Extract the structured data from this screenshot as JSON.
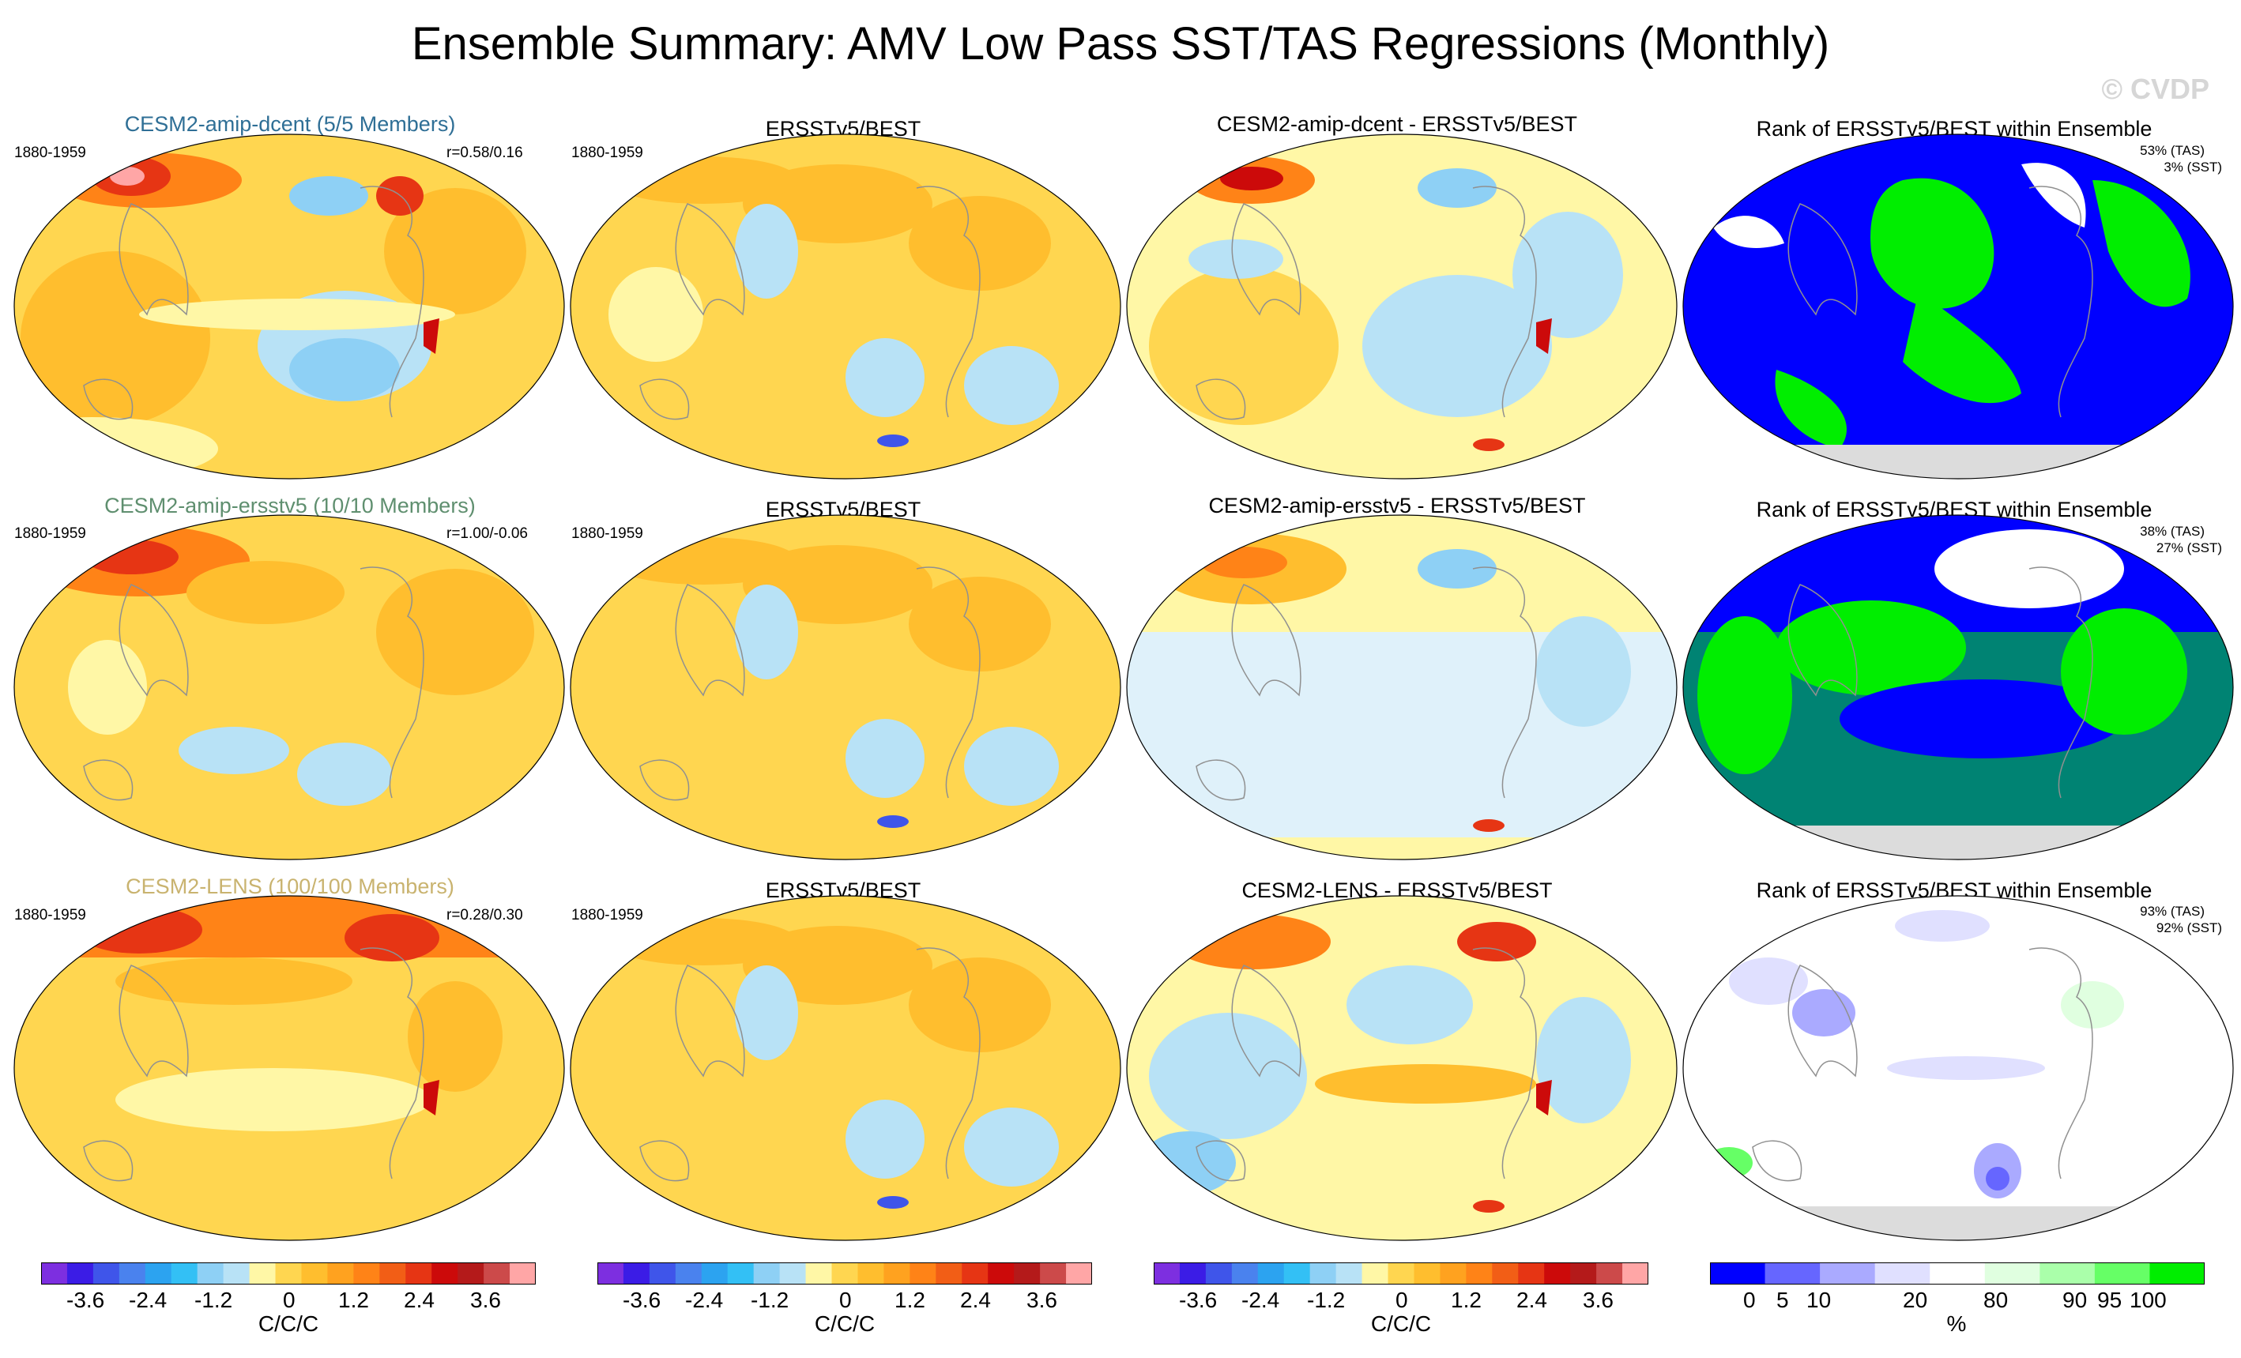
{
  "title": "Ensemble Summary: AMV Low Pass SST/TAS Regressions (Monthly)",
  "watermark": "© CVDP",
  "colors": {
    "model_title_row1": "#2f6f96",
    "model_title_row2": "#5f8f6f",
    "model_title_row3": "#c9b36f",
    "land_gray": "#dcdcdc",
    "coast": "#909090",
    "regression_scale": [
      "#7d2fe0",
      "#3b1ce6",
      "#3f55ea",
      "#4a82ee",
      "#2ca3f0",
      "#33c0f5",
      "#8ed0f5",
      "#b8e2f6",
      "#fff7a6",
      "#ffd650",
      "#ffbe2e",
      "#ffa21f",
      "#ff8317",
      "#f25e16",
      "#e63514",
      "#cc0a0a",
      "#b41a1a",
      "#cc4a4a",
      "#ffa6a6"
    ],
    "rank_scale": [
      "#0000ff",
      "#6666ff",
      "#aaaaff",
      "#e0e0ff",
      "#ffffff",
      "#e0ffe0",
      "#aaffaa",
      "#66ff66",
      "#00ee00"
    ]
  },
  "rows": [
    {
      "model": "CESM2-amip-dcent (5/5 Members)",
      "period": "1880-1959",
      "corr": "r=0.58/0.16",
      "obs_period": "1880-1959",
      "obs_title": "ERSSTv5/BEST",
      "diff_title": "CESM2-amip-dcent - ERSSTv5/BEST",
      "rank_title": "Rank of ERSSTv5/BEST within Ensemble",
      "rank_tas": "53% (TAS)",
      "rank_sst": "3% (SST)"
    },
    {
      "model": "CESM2-amip-ersstv5 (10/10 Members)",
      "period": "1880-1959",
      "corr": "r=1.00/-0.06",
      "obs_period": "1880-1959",
      "obs_title": "ERSSTv5/BEST",
      "diff_title": "CESM2-amip-ersstv5 - ERSSTv5/BEST",
      "rank_title": "Rank of ERSSTv5/BEST within Ensemble",
      "rank_tas": "38% (TAS)",
      "rank_sst": "27% (SST)"
    },
    {
      "model": "CESM2-LENS (100/100 Members)",
      "period": "1880-1959",
      "corr": "r=0.28/0.30",
      "obs_period": "1880-1959",
      "obs_title": "ERSSTv5/BEST",
      "diff_title": "CESM2-LENS - ERSSTv5/BEST",
      "rank_title": "Rank of ERSSTv5/BEST within Ensemble",
      "rank_tas": "93% (TAS)",
      "rank_sst": "92% (SST)"
    }
  ],
  "colorbars": {
    "regression_ticks": [
      "-3.6",
      "-2.4",
      "-1.2",
      "0",
      "1.2",
      "2.4",
      "3.6"
    ],
    "regression_unit": "C/C/C",
    "rank_ticks": [
      "0",
      "5",
      "10",
      "20",
      "80",
      "90",
      "95",
      "100"
    ],
    "rank_unit": "%"
  }
}
